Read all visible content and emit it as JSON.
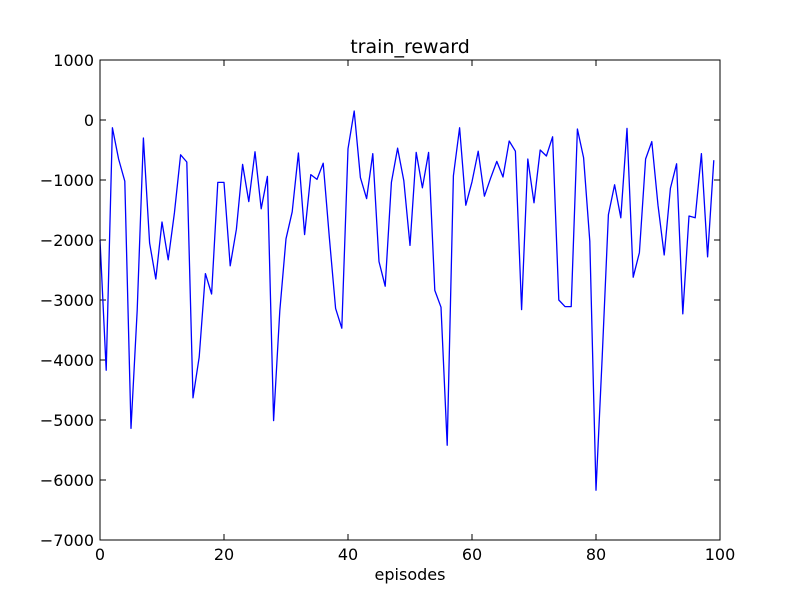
{
  "chart_data": {
    "type": "line",
    "title": "train_reward",
    "xlabel": "episodes",
    "ylabel": "",
    "xlim": [
      0,
      100
    ],
    "ylim": [
      -7000,
      1000
    ],
    "xticks": [
      0,
      20,
      40,
      60,
      80,
      100
    ],
    "yticks": [
      1000,
      0,
      -1000,
      -2000,
      -3000,
      -4000,
      -5000,
      -6000,
      -7000
    ],
    "xtick_labels": [
      "0",
      "20",
      "40",
      "60",
      "80",
      "100"
    ],
    "ytick_labels": [
      "1000",
      "0",
      "−1000",
      "−2000",
      "−3000",
      "−4000",
      "−5000",
      "−6000",
      "−7000"
    ],
    "grid": false,
    "line_color": "#0000ff",
    "series": [
      {
        "x": [
          0,
          1,
          2,
          3,
          4,
          5,
          6,
          7,
          8,
          9,
          10,
          11,
          12,
          13,
          14,
          15,
          16,
          17,
          18,
          19,
          20,
          21,
          22,
          23,
          24,
          25,
          26,
          27,
          28,
          29,
          30,
          31,
          32,
          33,
          34,
          35,
          36,
          37,
          38,
          39,
          40,
          41,
          42,
          43,
          44,
          45,
          46,
          47,
          48,
          49,
          50,
          51,
          52,
          53,
          54,
          55,
          56,
          57,
          58,
          59,
          60,
          61,
          62,
          63,
          64,
          65,
          66,
          67,
          68,
          69,
          70,
          71,
          72,
          73,
          74,
          75,
          76,
          77,
          78,
          79,
          80,
          81,
          82,
          83,
          84,
          85,
          86,
          87,
          88,
          89,
          90,
          91,
          92,
          93,
          94,
          95,
          96,
          97,
          98,
          99
        ],
        "y": [
          -2000,
          -4170,
          -130,
          -650,
          -1020,
          -5140,
          -3170,
          -300,
          -2050,
          -2650,
          -1700,
          -2330,
          -1550,
          -580,
          -700,
          -4630,
          -3950,
          -2560,
          -2900,
          -1040,
          -1040,
          -2430,
          -1820,
          -740,
          -1360,
          -530,
          -1480,
          -940,
          -5010,
          -3180,
          -1980,
          -1530,
          -550,
          -1910,
          -910,
          -990,
          -720,
          -1970,
          -3140,
          -3470,
          -480,
          150,
          -960,
          -1310,
          -560,
          -2360,
          -2770,
          -1040,
          -470,
          -1010,
          -2090,
          -540,
          -1130,
          -540,
          -2840,
          -3120,
          -5420,
          -930,
          -130,
          -1420,
          -1030,
          -520,
          -1270,
          -970,
          -690,
          -950,
          -350,
          -520,
          -3160,
          -650,
          -1380,
          -500,
          -600,
          -280,
          -3000,
          -3110,
          -3110,
          -150,
          -630,
          -2020,
          -6170,
          -3950,
          -1580,
          -1080,
          -1630,
          -140,
          -2620,
          -2210,
          -650,
          -360,
          -1420,
          -2250,
          -1140,
          -730,
          -3230,
          -1600,
          -1630,
          -560,
          -2280,
          -670
        ]
      }
    ]
  }
}
